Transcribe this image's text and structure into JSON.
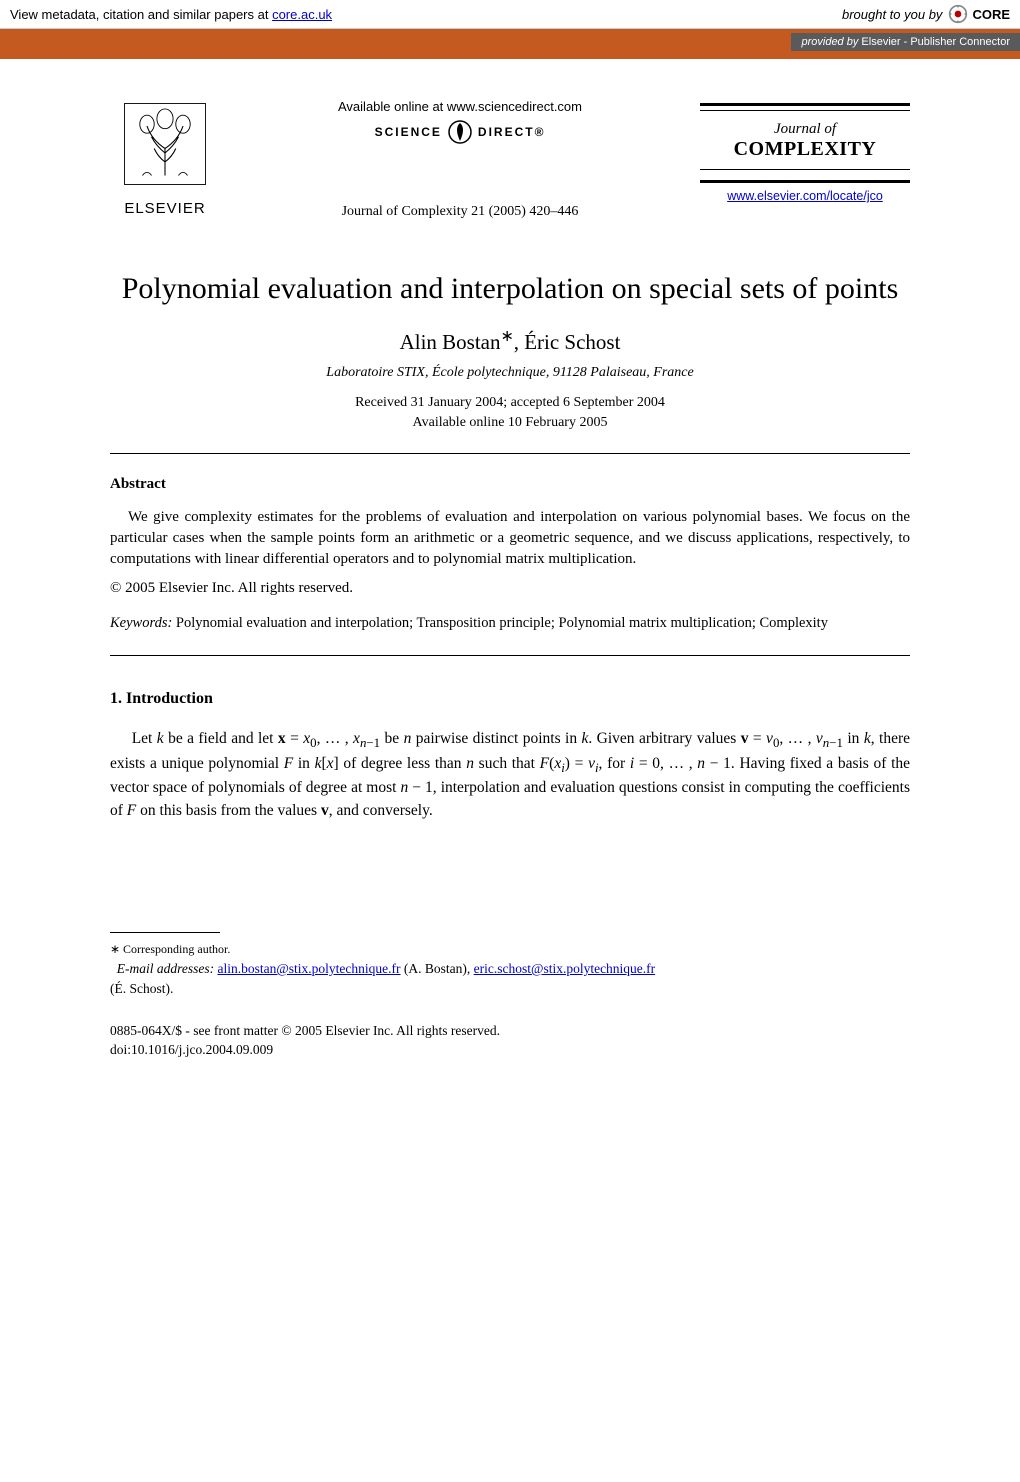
{
  "core": {
    "left_prefix": "View metadata, citation and similar papers at ",
    "left_link": "core.ac.uk",
    "brought": "brought to you by ",
    "brand": "CORE",
    "provided_prefix": "provided by ",
    "provided_value": "Elsevier - Publisher Connector"
  },
  "header": {
    "elsevier": "ELSEVIER",
    "available_online": "Available online at www.sciencedirect.com",
    "science_left": "SCIENCE",
    "science_right": "DIRECT®",
    "journal_ref": "Journal of Complexity 21 (2005) 420–446",
    "journal_of": "Journal of",
    "complexity": "COMPLEXITY",
    "locate": "www.elsevier.com/locate/jco"
  },
  "title": "Polynomial evaluation and interpolation on special sets of points",
  "authors_line": "Alin Bostan∗, Éric Schost",
  "affiliation": "Laboratoire STIX, École polytechnique, 91128 Palaiseau, France",
  "received": "Received 31 January 2004; accepted 6 September 2004",
  "online_date": "Available online 10 February 2005",
  "abstract": {
    "label": "Abstract",
    "body": "We give complexity estimates for the problems of evaluation and interpolation on various polynomial bases. We focus on the particular cases when the sample points form an arithmetic or a geometric sequence, and we discuss applications, respectively, to computations with linear differential operators and to polynomial matrix multiplication.",
    "copyright": "© 2005 Elsevier Inc. All rights reserved."
  },
  "keywords": {
    "label": "Keywords:",
    "text": " Polynomial evaluation and interpolation; Transposition principle; Polynomial matrix multiplication; Complexity"
  },
  "intro": {
    "heading": "1.  Introduction",
    "body_html": "Let <i>k</i> be a field and let <b>x</b> = <i>x</i><sub>0</sub>, … , <i>x</i><sub><i>n</i>−1</sub> be <i>n</i> pairwise distinct points in <i>k</i>. Given arbitrary values <b>v</b> = <i>v</i><sub>0</sub>, … , <i>v</i><sub><i>n</i>−1</sub> in <i>k</i>, there exists a unique polynomial <i>F</i> in <i>k</i>[<i>x</i>] of degree less than <i>n</i> such that <i>F</i>(<i>x</i><sub><i>i</i></sub>) = <i>v</i><sub><i>i</i></sub>, for <i>i</i> = 0, … , <i>n</i> − 1. Having fixed a basis of the vector space of polynomials of degree at most <i>n</i> − 1, interpolation and evaluation questions consist in computing the coefficients of <i>F</i> on this basis from the values <b>v</b>, and conversely."
  },
  "footnotes": {
    "corr": "∗ Corresponding author.",
    "email_label": "E-mail addresses:",
    "email1": "alin.bostan@stix.polytechnique.fr",
    "email1_name": " (A. Bostan), ",
    "email2": "eric.schost@stix.polytechnique.fr",
    "email2_name": "(É. Schost)."
  },
  "bottom": {
    "front": "0885-064X/$ - see front matter © 2005 Elsevier Inc. All rights reserved.",
    "doi": "doi:10.1016/j.jco.2004.09.009"
  },
  "style": {
    "orange": "#c45a1f",
    "link_color": "#0000cc",
    "badge_bg": "#5a5a5a"
  }
}
